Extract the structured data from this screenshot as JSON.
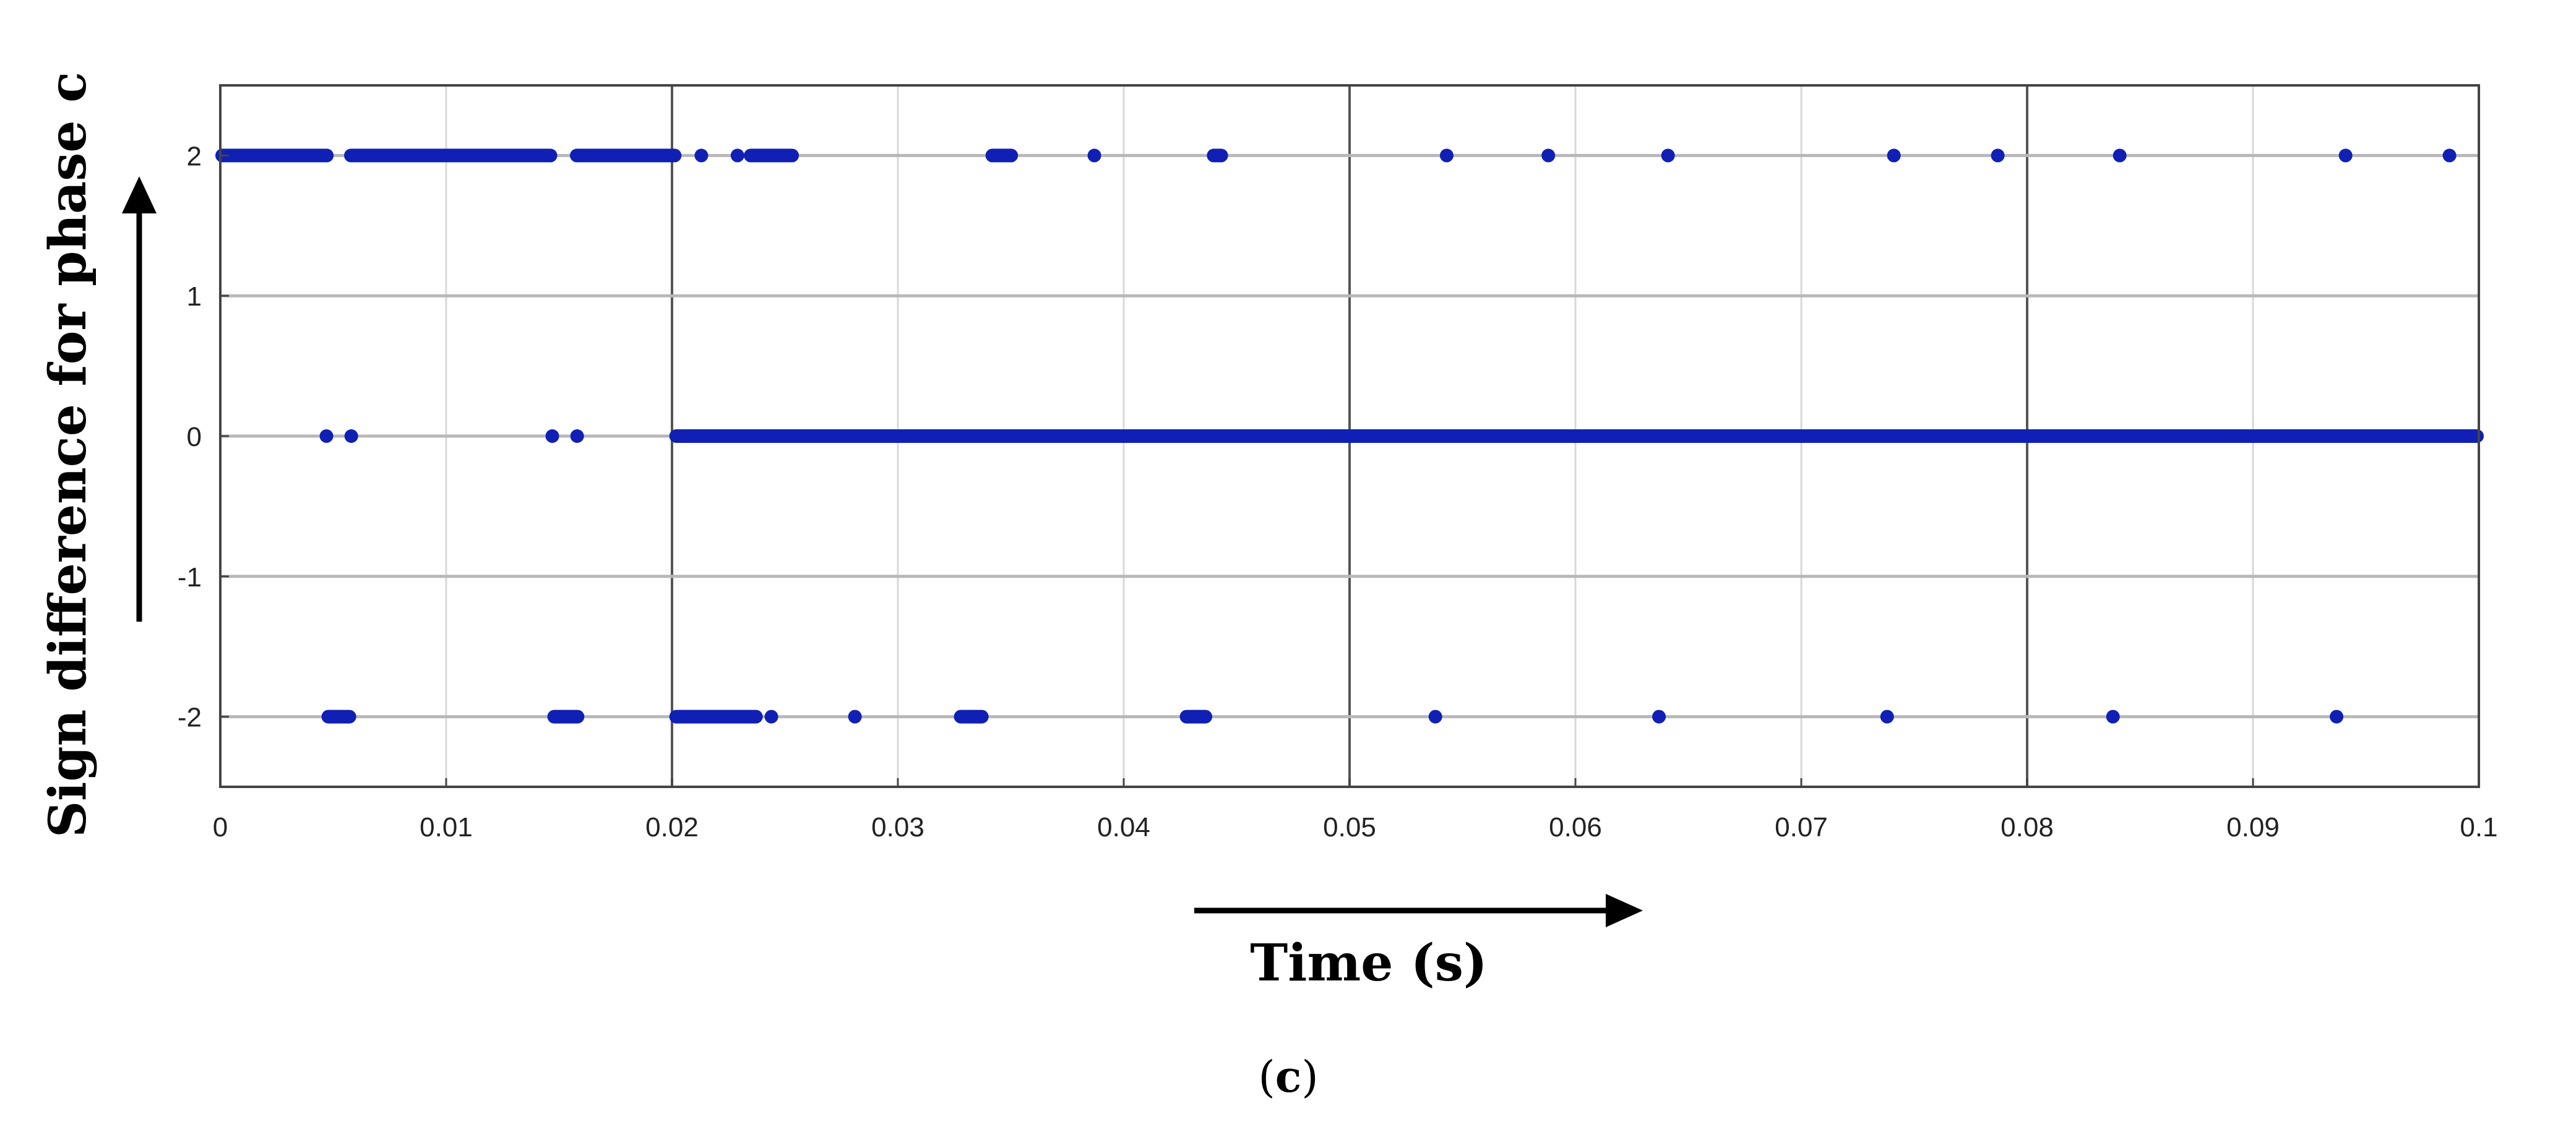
{
  "chart_data": {
    "type": "scatter",
    "title": "",
    "xlabel": "Time (s)",
    "ylabel": "Sign difference for phase c",
    "panel_label": "c",
    "xlim": [
      0,
      0.1
    ],
    "ylim": [
      -2.5,
      2.5
    ],
    "x_ticks": [
      0,
      0.01,
      0.02,
      0.03,
      0.04,
      0.05,
      0.06,
      0.07,
      0.08,
      0.09,
      0.1
    ],
    "x_tick_labels": [
      "0",
      "0.01",
      "0.02",
      "0.03",
      "0.04",
      "0.05",
      "0.06",
      "0.07",
      "0.08",
      "0.09",
      "0.1"
    ],
    "y_ticks": [
      2,
      1,
      0,
      -1,
      -2
    ],
    "y_tick_labels": [
      "2",
      "1",
      "0",
      "-1",
      "-2"
    ],
    "grid": true,
    "marker_color": "#1020b4",
    "series": [
      {
        "dense_segments": [
          {
            "y": 2,
            "x_start": 0.0,
            "x_end": 0.0048
          },
          {
            "y": 2,
            "x_start": 0.0057,
            "x_end": 0.0147
          },
          {
            "y": 2,
            "x_start": 0.0157,
            "x_end": 0.0202
          },
          {
            "y": 2,
            "x_start": 0.0234,
            "x_end": 0.0254
          },
          {
            "y": 2,
            "x_start": 0.0341,
            "x_end": 0.0351
          },
          {
            "y": 2,
            "x_start": 0.0439,
            "x_end": 0.0444
          },
          {
            "y": 0,
            "x_start": 0.0201,
            "x_end": 0.1
          },
          {
            "y": -2,
            "x_start": 0.0047,
            "x_end": 0.0058
          },
          {
            "y": -2,
            "x_start": 0.0147,
            "x_end": 0.0159
          },
          {
            "y": -2,
            "x_start": 0.0201,
            "x_end": 0.0238
          },
          {
            "y": -2,
            "x_start": 0.0327,
            "x_end": 0.0338
          },
          {
            "y": -2,
            "x_start": 0.0427,
            "x_end": 0.0437
          }
        ],
        "points": [
          {
            "x": 0.0213,
            "y": 2
          },
          {
            "x": 0.0229,
            "y": 2
          },
          {
            "x": 0.0387,
            "y": 2
          },
          {
            "x": 0.0543,
            "y": 2
          },
          {
            "x": 0.0588,
            "y": 2
          },
          {
            "x": 0.0641,
            "y": 2
          },
          {
            "x": 0.0741,
            "y": 2
          },
          {
            "x": 0.0787,
            "y": 2
          },
          {
            "x": 0.0841,
            "y": 2
          },
          {
            "x": 0.0941,
            "y": 2
          },
          {
            "x": 0.0987,
            "y": 2
          },
          {
            "x": 0.0047,
            "y": 0
          },
          {
            "x": 0.0058,
            "y": 0
          },
          {
            "x": 0.0147,
            "y": 0
          },
          {
            "x": 0.0158,
            "y": 0
          },
          {
            "x": 0.0244,
            "y": -2
          },
          {
            "x": 0.0281,
            "y": -2
          },
          {
            "x": 0.0538,
            "y": -2
          },
          {
            "x": 0.0637,
            "y": -2
          },
          {
            "x": 0.0738,
            "y": -2
          },
          {
            "x": 0.0838,
            "y": -2
          },
          {
            "x": 0.0937,
            "y": -2
          }
        ]
      }
    ]
  }
}
